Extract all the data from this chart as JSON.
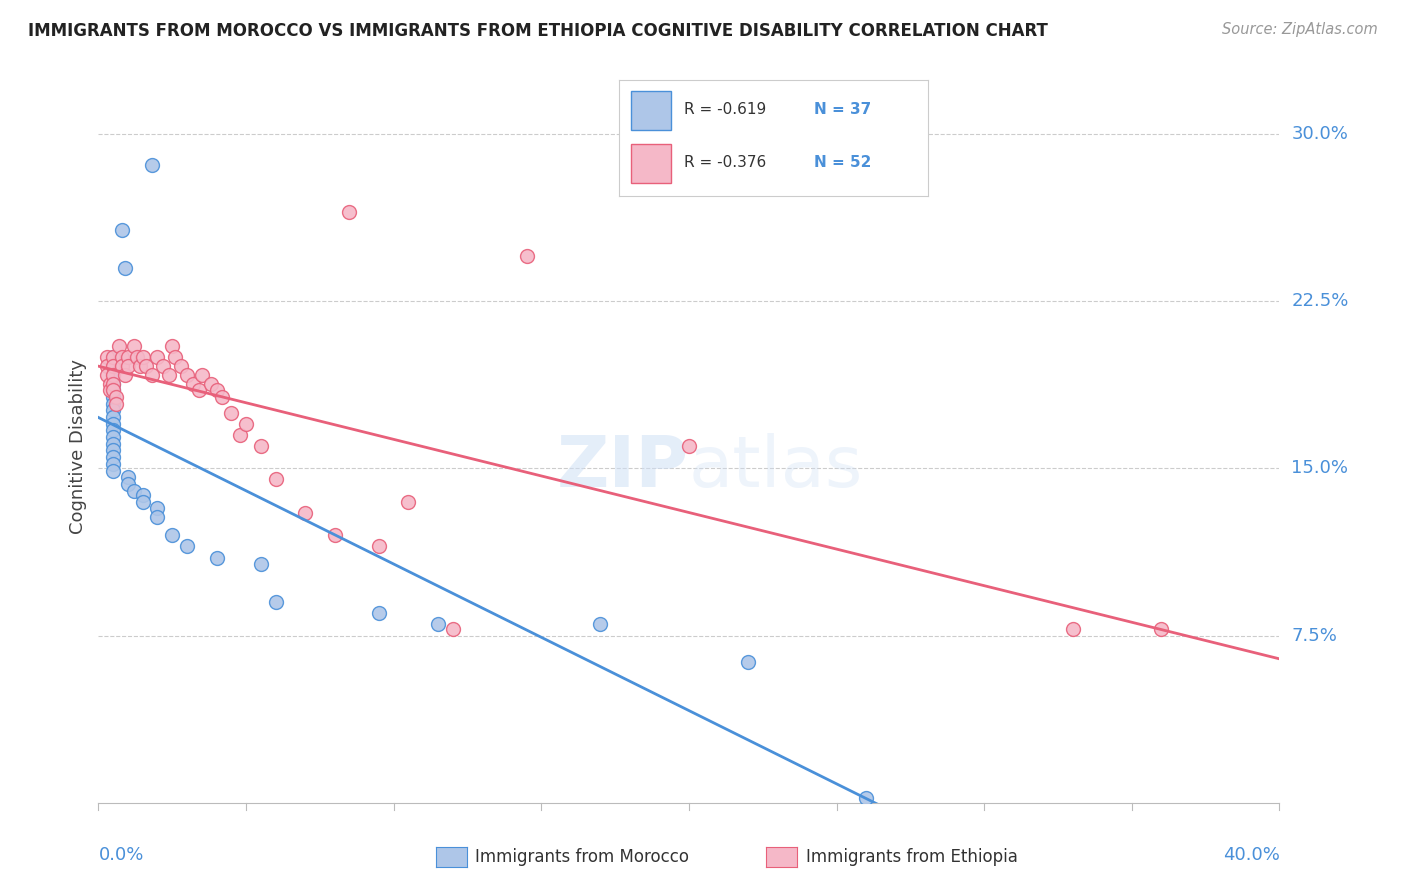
{
  "title": "IMMIGRANTS FROM MOROCCO VS IMMIGRANTS FROM ETHIOPIA COGNITIVE DISABILITY CORRELATION CHART",
  "source": "Source: ZipAtlas.com",
  "ylabel": "Cognitive Disability",
  "right_yticks": [
    0.075,
    0.15,
    0.225,
    0.3
  ],
  "right_yticklabels": [
    "7.5%",
    "15.0%",
    "22.5%",
    "30.0%"
  ],
  "xlim": [
    0.0,
    0.4
  ],
  "ylim": [
    0.0,
    0.32
  ],
  "morocco_color": "#aec6e8",
  "ethiopia_color": "#f5b8c8",
  "morocco_line_color": "#4a90d9",
  "ethiopia_line_color": "#e8607a",
  "morocco_R": "-0.619",
  "morocco_N": "37",
  "ethiopia_R": "-0.376",
  "ethiopia_N": "52",
  "watermark_zip": "ZIP",
  "watermark_atlas": "atlas",
  "morocco_x": [
    0.018,
    0.008,
    0.009,
    0.005,
    0.005,
    0.005,
    0.005,
    0.005,
    0.005,
    0.005,
    0.005,
    0.005,
    0.005,
    0.005,
    0.005,
    0.005,
    0.005,
    0.005,
    0.005,
    0.005,
    0.01,
    0.01,
    0.012,
    0.015,
    0.015,
    0.02,
    0.02,
    0.025,
    0.03,
    0.04,
    0.055,
    0.06,
    0.095,
    0.115,
    0.17,
    0.22,
    0.26
  ],
  "morocco_y": [
    0.286,
    0.257,
    0.24,
    0.2,
    0.196,
    0.192,
    0.188,
    0.185,
    0.182,
    0.179,
    0.176,
    0.173,
    0.17,
    0.167,
    0.164,
    0.161,
    0.158,
    0.155,
    0.152,
    0.149,
    0.146,
    0.143,
    0.14,
    0.138,
    0.135,
    0.132,
    0.128,
    0.12,
    0.115,
    0.11,
    0.107,
    0.09,
    0.085,
    0.08,
    0.08,
    0.063,
    0.002
  ],
  "ethiopia_x": [
    0.003,
    0.003,
    0.003,
    0.004,
    0.004,
    0.005,
    0.005,
    0.005,
    0.005,
    0.005,
    0.006,
    0.006,
    0.007,
    0.008,
    0.008,
    0.009,
    0.01,
    0.01,
    0.012,
    0.013,
    0.014,
    0.015,
    0.016,
    0.018,
    0.02,
    0.022,
    0.024,
    0.025,
    0.026,
    0.028,
    0.03,
    0.032,
    0.034,
    0.035,
    0.038,
    0.04,
    0.042,
    0.045,
    0.048,
    0.05,
    0.055,
    0.06,
    0.07,
    0.08,
    0.085,
    0.095,
    0.105,
    0.12,
    0.145,
    0.2,
    0.33,
    0.36
  ],
  "ethiopia_y": [
    0.2,
    0.196,
    0.192,
    0.188,
    0.185,
    0.2,
    0.196,
    0.192,
    0.188,
    0.185,
    0.182,
    0.179,
    0.205,
    0.2,
    0.196,
    0.192,
    0.2,
    0.196,
    0.205,
    0.2,
    0.196,
    0.2,
    0.196,
    0.192,
    0.2,
    0.196,
    0.192,
    0.205,
    0.2,
    0.196,
    0.192,
    0.188,
    0.185,
    0.192,
    0.188,
    0.185,
    0.182,
    0.175,
    0.165,
    0.17,
    0.16,
    0.145,
    0.13,
    0.12,
    0.265,
    0.115,
    0.135,
    0.078,
    0.245,
    0.16,
    0.078,
    0.078
  ],
  "background_color": "#ffffff",
  "grid_color": "#cccccc"
}
